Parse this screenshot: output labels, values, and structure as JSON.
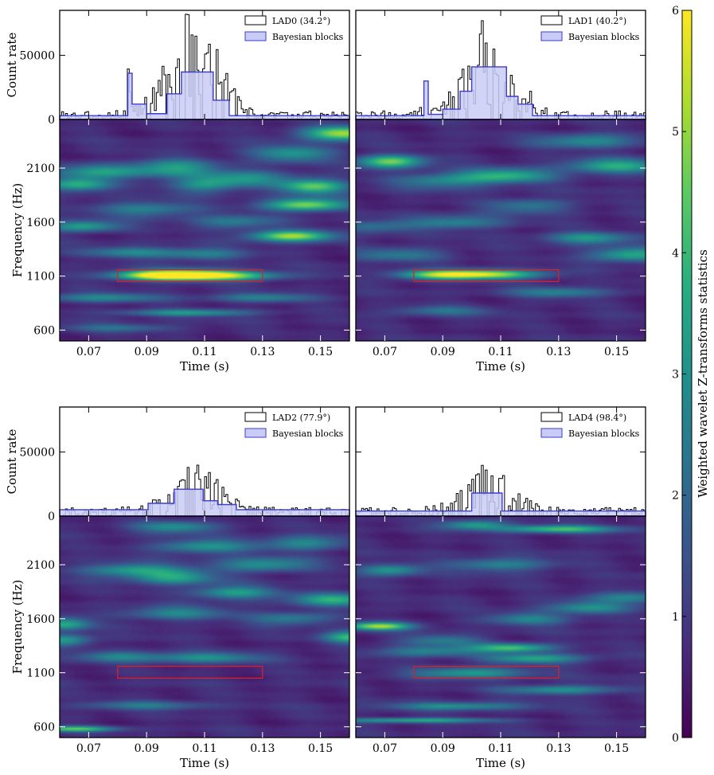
{
  "figure": {
    "colorbar": {
      "label": "Weighted wavelet Z-transforms statistics",
      "min": 0,
      "max": 6,
      "ticks": [
        "0",
        "1",
        "2",
        "3",
        "4",
        "5",
        "6"
      ],
      "colormap": [
        "#440154",
        "#472d7b",
        "#3b528b",
        "#2c728e",
        "#21918c",
        "#28ae80",
        "#5ec962",
        "#addc30",
        "#fde725"
      ]
    },
    "legend_bb": "Bayesian blocks",
    "lc_color": "#000000",
    "bb_color": "#3b3bd6",
    "bb_fill": "#c9ccf6",
    "box_color": "#d8202a"
  },
  "chart_data": [
    {
      "type": "heatmap",
      "panel": "LAD0",
      "legend_lc": "LAD0 (34.2°)",
      "lightcurve": {
        "ylabel": "Count rate",
        "ylim": [
          0,
          85000
        ],
        "yticks": [
          "0",
          "50000"
        ]
      },
      "xlabel": "Time (s)",
      "ylabel": "Frequency (Hz)",
      "xlim": [
        0.06,
        0.16
      ],
      "ylim": [
        500,
        2550
      ],
      "xticks": [
        "0.07",
        "0.09",
        "0.11",
        "0.13",
        "0.15"
      ],
      "yticks": [
        "600",
        "1100",
        "1600",
        "2100"
      ],
      "box": {
        "t0": 0.08,
        "t1": 0.13,
        "f0": 1050,
        "f1": 1160
      },
      "blocks": [
        [
          0.06,
          0.0835,
          3000
        ],
        [
          0.0835,
          0.085,
          36000
        ],
        [
          0.085,
          0.09,
          12000
        ],
        [
          0.09,
          0.097,
          4500
        ],
        [
          0.097,
          0.102,
          20000
        ],
        [
          0.102,
          0.113,
          37000
        ],
        [
          0.113,
          0.1185,
          15000
        ],
        [
          0.1185,
          0.16,
          3000
        ]
      ],
      "hotspots": [
        [
          0.104,
          1110,
          5.6,
          0.014,
          35
        ],
        [
          0.092,
          1105,
          2.4,
          0.01,
          30
        ],
        [
          0.122,
          1100,
          2.0,
          0.012,
          30
        ],
        [
          0.104,
          760,
          2.5,
          0.016,
          22
        ],
        [
          0.145,
          1760,
          4.3,
          0.01,
          40
        ],
        [
          0.14,
          1470,
          4.6,
          0.01,
          35
        ],
        [
          0.158,
          2420,
          4.6,
          0.01,
          45
        ],
        [
          0.148,
          1930,
          3.8,
          0.008,
          50
        ],
        [
          0.066,
          1950,
          3.2,
          0.008,
          45
        ],
        [
          0.068,
          1560,
          2.8,
          0.009,
          35
        ],
        [
          0.075,
          2070,
          2.4,
          0.012,
          45
        ],
        [
          0.1,
          2100,
          2.4,
          0.01,
          60
        ],
        [
          0.125,
          2000,
          2.2,
          0.01,
          50
        ],
        [
          0.14,
          2230,
          2.4,
          0.01,
          55
        ],
        [
          0.11,
          1950,
          2.2,
          0.008,
          55
        ],
        [
          0.09,
          1720,
          2.0,
          0.012,
          50
        ],
        [
          0.12,
          1600,
          1.8,
          0.01,
          45
        ],
        [
          0.085,
          1320,
          2.0,
          0.012,
          35
        ],
        [
          0.11,
          1300,
          1.8,
          0.01,
          40
        ],
        [
          0.075,
          900,
          2.0,
          0.014,
          30
        ],
        [
          0.13,
          900,
          1.8,
          0.012,
          30
        ],
        [
          0.08,
          620,
          1.6,
          0.014,
          25
        ]
      ]
    },
    {
      "type": "heatmap",
      "panel": "LAD1",
      "legend_lc": "LAD1 (40.2°)",
      "lightcurve": {
        "ylabel": "",
        "ylim": [
          0,
          85000
        ],
        "yticks": []
      },
      "xlabel": "Time (s)",
      "ylabel": "",
      "xlim": [
        0.06,
        0.16
      ],
      "ylim": [
        500,
        2550
      ],
      "xticks": [
        "0.07",
        "0.09",
        "0.11",
        "0.13",
        "0.15"
      ],
      "yticks": [],
      "box": {
        "t0": 0.08,
        "t1": 0.13,
        "f0": 1050,
        "f1": 1160
      },
      "blocks": [
        [
          0.06,
          0.0835,
          3000
        ],
        [
          0.0835,
          0.085,
          30000
        ],
        [
          0.085,
          0.09,
          4000
        ],
        [
          0.09,
          0.096,
          8000
        ],
        [
          0.096,
          0.1,
          22000
        ],
        [
          0.1,
          0.112,
          41000
        ],
        [
          0.112,
          0.116,
          18000
        ],
        [
          0.116,
          0.121,
          12000
        ],
        [
          0.121,
          0.16,
          3000
        ]
      ],
      "hotspots": [
        [
          0.104,
          1115,
          4.8,
          0.014,
          30
        ],
        [
          0.087,
          1110,
          2.6,
          0.01,
          30
        ],
        [
          0.072,
          2160,
          4.1,
          0.008,
          40
        ],
        [
          0.112,
          2030,
          3.0,
          0.012,
          45
        ],
        [
          0.15,
          2120,
          2.8,
          0.012,
          50
        ],
        [
          0.155,
          1300,
          3.0,
          0.01,
          45
        ],
        [
          0.14,
          1450,
          2.4,
          0.01,
          40
        ],
        [
          0.09,
          1980,
          2.0,
          0.012,
          50
        ],
        [
          0.095,
          1600,
          2.0,
          0.012,
          45
        ],
        [
          0.12,
          1750,
          1.8,
          0.01,
          45
        ],
        [
          0.075,
          1300,
          1.8,
          0.012,
          40
        ],
        [
          0.13,
          950,
          1.8,
          0.012,
          35
        ],
        [
          0.09,
          780,
          1.6,
          0.012,
          30
        ],
        [
          0.065,
          1550,
          1.6,
          0.01,
          40
        ],
        [
          0.14,
          2350,
          2.2,
          0.012,
          45
        ]
      ]
    },
    {
      "type": "heatmap",
      "panel": "LAD2",
      "legend_lc": "LAD2 (77.9°)",
      "lightcurve": {
        "ylabel": "Count rate",
        "ylim": [
          0,
          85000
        ],
        "yticks": [
          "0",
          "50000"
        ]
      },
      "xlabel": "Time (s)",
      "ylabel": "Frequency (Hz)",
      "xlim": [
        0.06,
        0.16
      ],
      "ylim": [
        500,
        2550
      ],
      "xticks": [
        "0.07",
        "0.09",
        "0.11",
        "0.13",
        "0.15"
      ],
      "yticks": [
        "600",
        "1100",
        "1600",
        "2100"
      ],
      "box": {
        "t0": 0.08,
        "t1": 0.13,
        "f0": 1050,
        "f1": 1160
      },
      "blocks": [
        [
          0.06,
          0.0905,
          5000
        ],
        [
          0.0905,
          0.0995,
          10000
        ],
        [
          0.0995,
          0.1095,
          21000
        ],
        [
          0.1095,
          0.1145,
          12000
        ],
        [
          0.1145,
          0.121,
          9000
        ],
        [
          0.121,
          0.16,
          5000
        ]
      ],
      "hotspots": [
        [
          0.065,
          580,
          3.6,
          0.01,
          18
        ],
        [
          0.062,
          1550,
          3.0,
          0.006,
          40
        ],
        [
          0.062,
          1400,
          2.6,
          0.006,
          40
        ],
        [
          0.16,
          1430,
          3.2,
          0.006,
          40
        ],
        [
          0.155,
          1780,
          3.2,
          0.01,
          40
        ],
        [
          0.12,
          1840,
          2.6,
          0.01,
          45
        ],
        [
          0.1,
          1980,
          2.6,
          0.01,
          45
        ],
        [
          0.085,
          2050,
          2.6,
          0.012,
          45
        ],
        [
          0.13,
          2100,
          2.4,
          0.012,
          45
        ],
        [
          0.11,
          2270,
          2.4,
          0.012,
          45
        ],
        [
          0.145,
          2300,
          2.2,
          0.01,
          45
        ],
        [
          0.1,
          1650,
          2.0,
          0.012,
          45
        ],
        [
          0.14,
          1600,
          2.0,
          0.01,
          40
        ],
        [
          0.11,
          1240,
          2.2,
          0.014,
          35
        ],
        [
          0.08,
          1250,
          1.8,
          0.01,
          35
        ],
        [
          0.1,
          2450,
          2.2,
          0.01,
          40
        ],
        [
          0.09,
          800,
          1.6,
          0.014,
          30
        ]
      ]
    },
    {
      "type": "heatmap",
      "panel": "LAD4",
      "legend_lc": "LAD4 (98.4°)",
      "lightcurve": {
        "ylabel": "",
        "ylim": [
          0,
          85000
        ],
        "yticks": []
      },
      "xlabel": "Time (s)",
      "ylabel": "",
      "xlim": [
        0.06,
        0.16
      ],
      "ylim": [
        500,
        2550
      ],
      "xticks": [
        "0.07",
        "0.09",
        "0.11",
        "0.13",
        "0.15"
      ],
      "yticks": [],
      "box": {
        "t0": 0.08,
        "t1": 0.13,
        "f0": 1050,
        "f1": 1160
      },
      "blocks": [
        [
          0.06,
          0.1,
          4000
        ],
        [
          0.1,
          0.1105,
          18000
        ],
        [
          0.1105,
          0.16,
          4000
        ]
      ],
      "hotspots": [
        [
          0.068,
          1530,
          4.5,
          0.008,
          25
        ],
        [
          0.114,
          1330,
          3.6,
          0.01,
          28
        ],
        [
          0.13,
          2430,
          3.4,
          0.014,
          25
        ],
        [
          0.101,
          2470,
          2.6,
          0.008,
          30
        ],
        [
          0.072,
          2050,
          2.6,
          0.008,
          35
        ],
        [
          0.122,
          1230,
          2.8,
          0.012,
          30
        ],
        [
          0.1,
          1100,
          2.6,
          0.014,
          35
        ],
        [
          0.13,
          940,
          2.4,
          0.014,
          30
        ],
        [
          0.095,
          790,
          2.4,
          0.016,
          25
        ],
        [
          0.08,
          660,
          3.0,
          0.02,
          16
        ],
        [
          0.14,
          1700,
          2.2,
          0.01,
          40
        ],
        [
          0.12,
          1600,
          2.0,
          0.01,
          40
        ],
        [
          0.11,
          2100,
          2.0,
          0.012,
          45
        ],
        [
          0.085,
          1300,
          2.0,
          0.012,
          35
        ],
        [
          0.155,
          1800,
          2.0,
          0.01,
          40
        ],
        [
          0.09,
          1400,
          1.8,
          0.01,
          35
        ]
      ]
    }
  ]
}
